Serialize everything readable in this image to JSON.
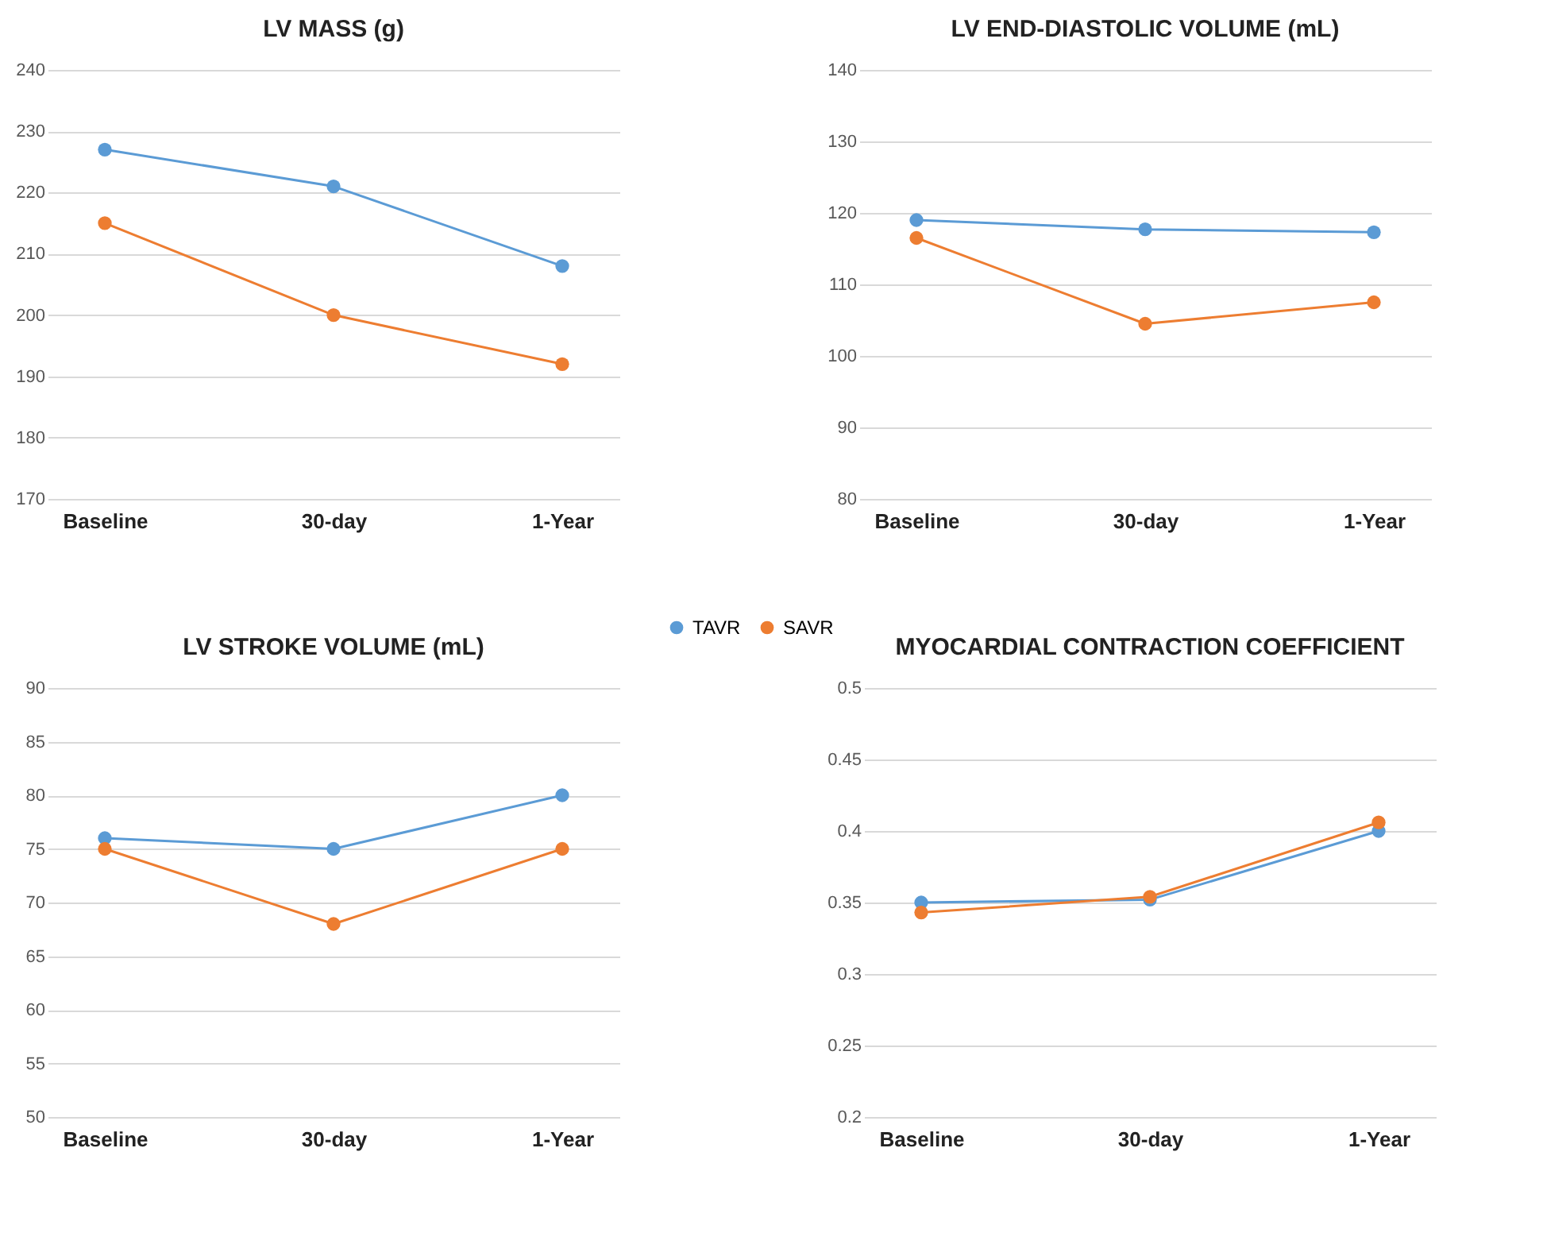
{
  "chart_data": [
    {
      "type": "line",
      "title": "LV MASS (g)",
      "categories": [
        "Baseline",
        "30-day",
        "1-Year"
      ],
      "ylim": [
        170,
        240
      ],
      "yticks": [
        170,
        180,
        190,
        200,
        210,
        220,
        230,
        240
      ],
      "grid": "y",
      "legend": "bottom",
      "marker": "circle",
      "series": [
        {
          "name": "TAVR",
          "color": "#5b9bd5",
          "values": [
            227,
            221,
            208
          ]
        },
        {
          "name": "SAVR",
          "color": "#ed7d31",
          "values": [
            215,
            200,
            192
          ]
        }
      ]
    },
    {
      "type": "line",
      "title": "LV END-DIASTOLIC VOLUME (mL)",
      "categories": [
        "Baseline",
        "30-day",
        "1-Year"
      ],
      "ylim": [
        80,
        140
      ],
      "yticks": [
        80,
        90,
        100,
        110,
        120,
        130,
        140
      ],
      "grid": "y",
      "marker": "circle",
      "series": [
        {
          "name": "TAVR",
          "color": "#5b9bd5",
          "values": [
            119,
            117.7,
            117.3
          ]
        },
        {
          "name": "SAVR",
          "color": "#ed7d31",
          "values": [
            116.5,
            104.5,
            107.5
          ]
        }
      ]
    },
    {
      "type": "line",
      "title": "LV STROKE VOLUME (mL)",
      "categories": [
        "Baseline",
        "30-day",
        "1-Year"
      ],
      "ylim": [
        50,
        90
      ],
      "yticks": [
        50,
        55,
        60,
        65,
        70,
        75,
        80,
        85,
        90
      ],
      "grid": "y",
      "marker": "circle",
      "series": [
        {
          "name": "TAVR",
          "color": "#5b9bd5",
          "values": [
            76,
            75,
            80
          ]
        },
        {
          "name": "SAVR",
          "color": "#ed7d31",
          "values": [
            75,
            68,
            75
          ]
        }
      ]
    },
    {
      "type": "line",
      "title": "MYOCARDIAL CONTRACTION COEFFICIENT",
      "categories": [
        "Baseline",
        "30-day",
        "1-Year"
      ],
      "ylim": [
        0.2,
        0.5
      ],
      "yticks": [
        0.2,
        0.25,
        0.3,
        0.35,
        0.4,
        0.45,
        0.5
      ],
      "grid": "y",
      "marker": "circle",
      "series": [
        {
          "name": "TAVR",
          "color": "#5b9bd5",
          "values": [
            0.35,
            0.352,
            0.4
          ]
        },
        {
          "name": "SAVR",
          "color": "#ed7d31",
          "values": [
            0.343,
            0.354,
            0.406
          ]
        }
      ]
    }
  ]
}
